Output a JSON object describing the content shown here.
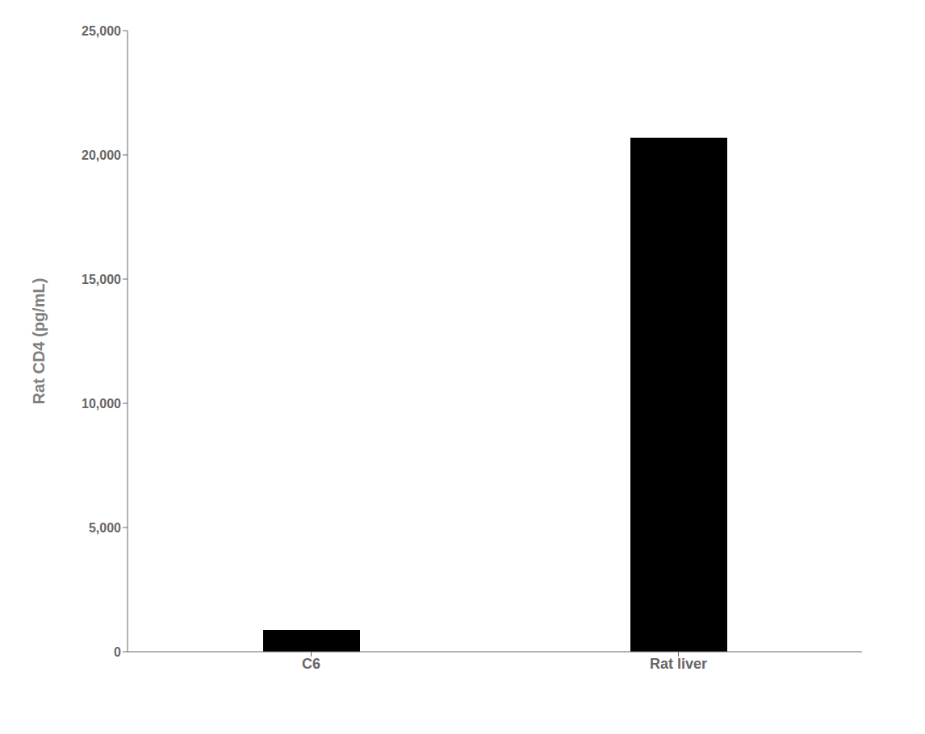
{
  "chart_data": {
    "type": "bar",
    "ylabel": "Rat CD4 (pg/mL)",
    "categories": [
      "C6",
      "Rat liver"
    ],
    "values": [
      874.9,
      20690.7
    ],
    "color": "#000000",
    "ylim": [
      0,
      25000
    ],
    "yticks": [
      0,
      {
        "value": 5000,
        "label": "5,000"
      },
      {
        "value": 10000,
        "label": "10,000"
      },
      {
        "value": 15000,
        "label": "15,000"
      },
      {
        "value": 20000,
        "label": "20,000"
      },
      {
        "value": 25000,
        "label": "25,000"
      }
    ],
    "grid": false
  }
}
